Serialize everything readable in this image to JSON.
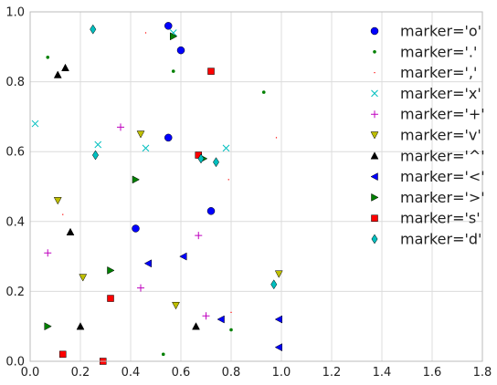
{
  "chart_data": {
    "type": "scatter",
    "title": "",
    "xlabel": "",
    "ylabel": "",
    "xlim": [
      0,
      1.8
    ],
    "ylim": [
      0,
      1.0
    ],
    "x_ticks": [
      "0.0",
      "0.2",
      "0.4",
      "0.6",
      "0.8",
      "1.0",
      "1.2",
      "1.4",
      "1.6",
      "1.8"
    ],
    "y_ticks": [
      "0.0",
      "0.2",
      "0.4",
      "0.6",
      "0.8",
      "1.0"
    ],
    "grid": true,
    "legend_position": "top-right",
    "series": [
      {
        "name": "marker='o'",
        "marker": "o",
        "color": "#0000ff",
        "points": [
          [
            0.55,
            0.96
          ],
          [
            0.6,
            0.89
          ],
          [
            0.55,
            0.64
          ],
          [
            0.42,
            0.38
          ],
          [
            0.72,
            0.43
          ]
        ]
      },
      {
        "name": "marker='.'",
        "marker": ".",
        "color": "#008000",
        "points": [
          [
            0.07,
            0.87
          ],
          [
            0.57,
            0.83
          ],
          [
            0.93,
            0.77
          ],
          [
            0.53,
            0.02
          ],
          [
            0.8,
            0.09
          ]
        ]
      },
      {
        "name": "marker=','",
        "marker": ",",
        "color": "#ff0000",
        "points": [
          [
            0.46,
            0.94
          ],
          [
            0.98,
            0.64
          ],
          [
            0.79,
            0.52
          ],
          [
            0.13,
            0.42
          ],
          [
            0.8,
            0.14
          ]
        ]
      },
      {
        "name": "marker='x'",
        "marker": "x",
        "color": "#00bfbf",
        "points": [
          [
            0.02,
            0.68
          ],
          [
            0.57,
            0.94
          ],
          [
            0.27,
            0.62
          ],
          [
            0.46,
            0.61
          ],
          [
            0.78,
            0.61
          ]
        ]
      },
      {
        "name": "marker='+'",
        "marker": "+",
        "color": "#bf00bf",
        "points": [
          [
            0.36,
            0.67
          ],
          [
            0.07,
            0.31
          ],
          [
            0.67,
            0.36
          ],
          [
            0.44,
            0.21
          ],
          [
            0.7,
            0.13
          ]
        ]
      },
      {
        "name": "marker='v'",
        "marker": "v",
        "color": "#bfbf00",
        "points": [
          [
            0.44,
            0.65
          ],
          [
            0.11,
            0.46
          ],
          [
            0.21,
            0.24
          ],
          [
            0.58,
            0.16
          ],
          [
            0.99,
            0.25
          ]
        ]
      },
      {
        "name": "marker='^'",
        "marker": "^",
        "color": "#000000",
        "points": [
          [
            0.11,
            0.82
          ],
          [
            0.14,
            0.84
          ],
          [
            0.16,
            0.37
          ],
          [
            0.2,
            0.1
          ],
          [
            0.66,
            0.1
          ]
        ]
      },
      {
        "name": "marker='<'",
        "marker": "<",
        "color": "#0000ff",
        "points": [
          [
            0.47,
            0.28
          ],
          [
            0.61,
            0.3
          ],
          [
            0.76,
            0.12
          ],
          [
            0.99,
            0.12
          ],
          [
            0.99,
            0.04
          ]
        ]
      },
      {
        "name": "marker='>'",
        "marker": ">",
        "color": "#008000",
        "points": [
          [
            0.57,
            0.93
          ],
          [
            0.42,
            0.52
          ],
          [
            0.07,
            0.1
          ],
          [
            0.32,
            0.26
          ],
          [
            0.69,
            0.58
          ]
        ]
      },
      {
        "name": "marker='s'",
        "marker": "s",
        "color": "#ff0000",
        "points": [
          [
            0.72,
            0.83
          ],
          [
            0.67,
            0.59
          ],
          [
            0.32,
            0.18
          ],
          [
            0.13,
            0.02
          ],
          [
            0.29,
            0.0
          ]
        ]
      },
      {
        "name": "marker='d'",
        "marker": "d",
        "color": "#00bfbf",
        "points": [
          [
            0.25,
            0.95
          ],
          [
            0.26,
            0.59
          ],
          [
            0.68,
            0.58
          ],
          [
            0.74,
            0.57
          ],
          [
            0.97,
            0.22
          ]
        ]
      }
    ]
  }
}
